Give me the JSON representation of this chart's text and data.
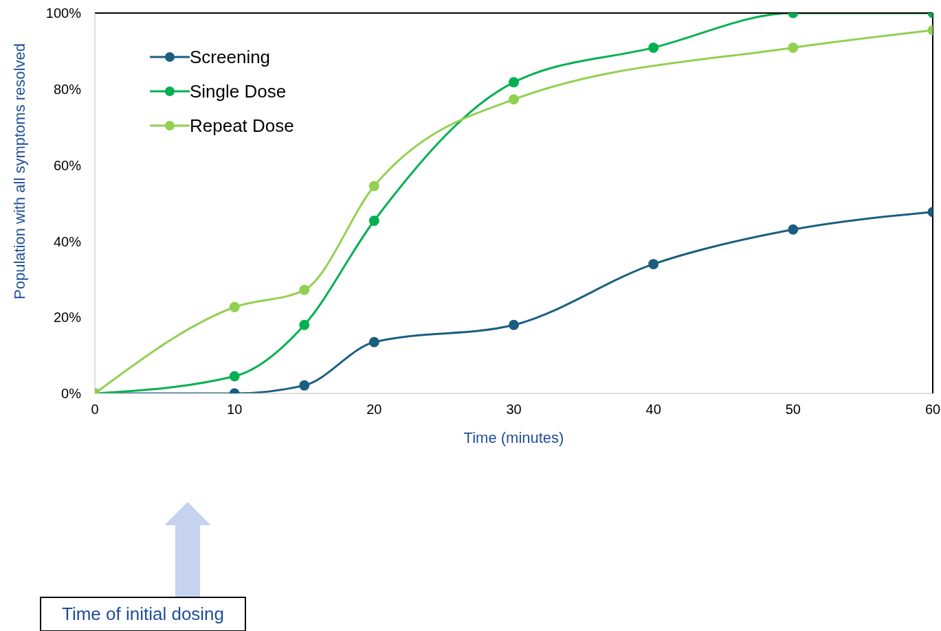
{
  "chart_data": {
    "type": "line",
    "xlabel": "Time (minutes)",
    "ylabel": "Population with all symptoms resolved",
    "x": [
      0,
      10,
      15,
      20,
      30,
      40,
      50,
      60
    ],
    "series": [
      {
        "name": "Screening",
        "color": "#1a5e80",
        "values": [
          0,
          0,
          2.1,
          13.5,
          18,
          34,
          43.1,
          47.7
        ]
      },
      {
        "name": "Single Dose",
        "color": "#00b050",
        "values": [
          0,
          4.5,
          18,
          45.4,
          81.8,
          90.9,
          100,
          100
        ]
      },
      {
        "name": "Repeat Dose",
        "color": "#92d050",
        "x": [
          0,
          10,
          15,
          20,
          30,
          50,
          60
        ],
        "values": [
          0,
          22.7,
          27.2,
          54.5,
          77.3,
          90.9,
          95.5
        ]
      }
    ],
    "xlim": [
      0,
      60
    ],
    "xticks": [
      0,
      10,
      20,
      30,
      40,
      50,
      60
    ],
    "ylim": [
      0,
      100
    ],
    "yticks": [
      {
        "value": 0,
        "label": "0%"
      },
      {
        "value": 20,
        "label": "20%"
      },
      {
        "value": 40,
        "label": "40%"
      },
      {
        "value": 60,
        "label": "60%"
      },
      {
        "value": 80,
        "label": "80%"
      },
      {
        "value": 100,
        "label": "100%"
      }
    ],
    "grid": false,
    "legend": "top left",
    "marker": "circle",
    "line_style": "solid",
    "annotations": [
      "Time of initial dosing"
    ]
  }
}
